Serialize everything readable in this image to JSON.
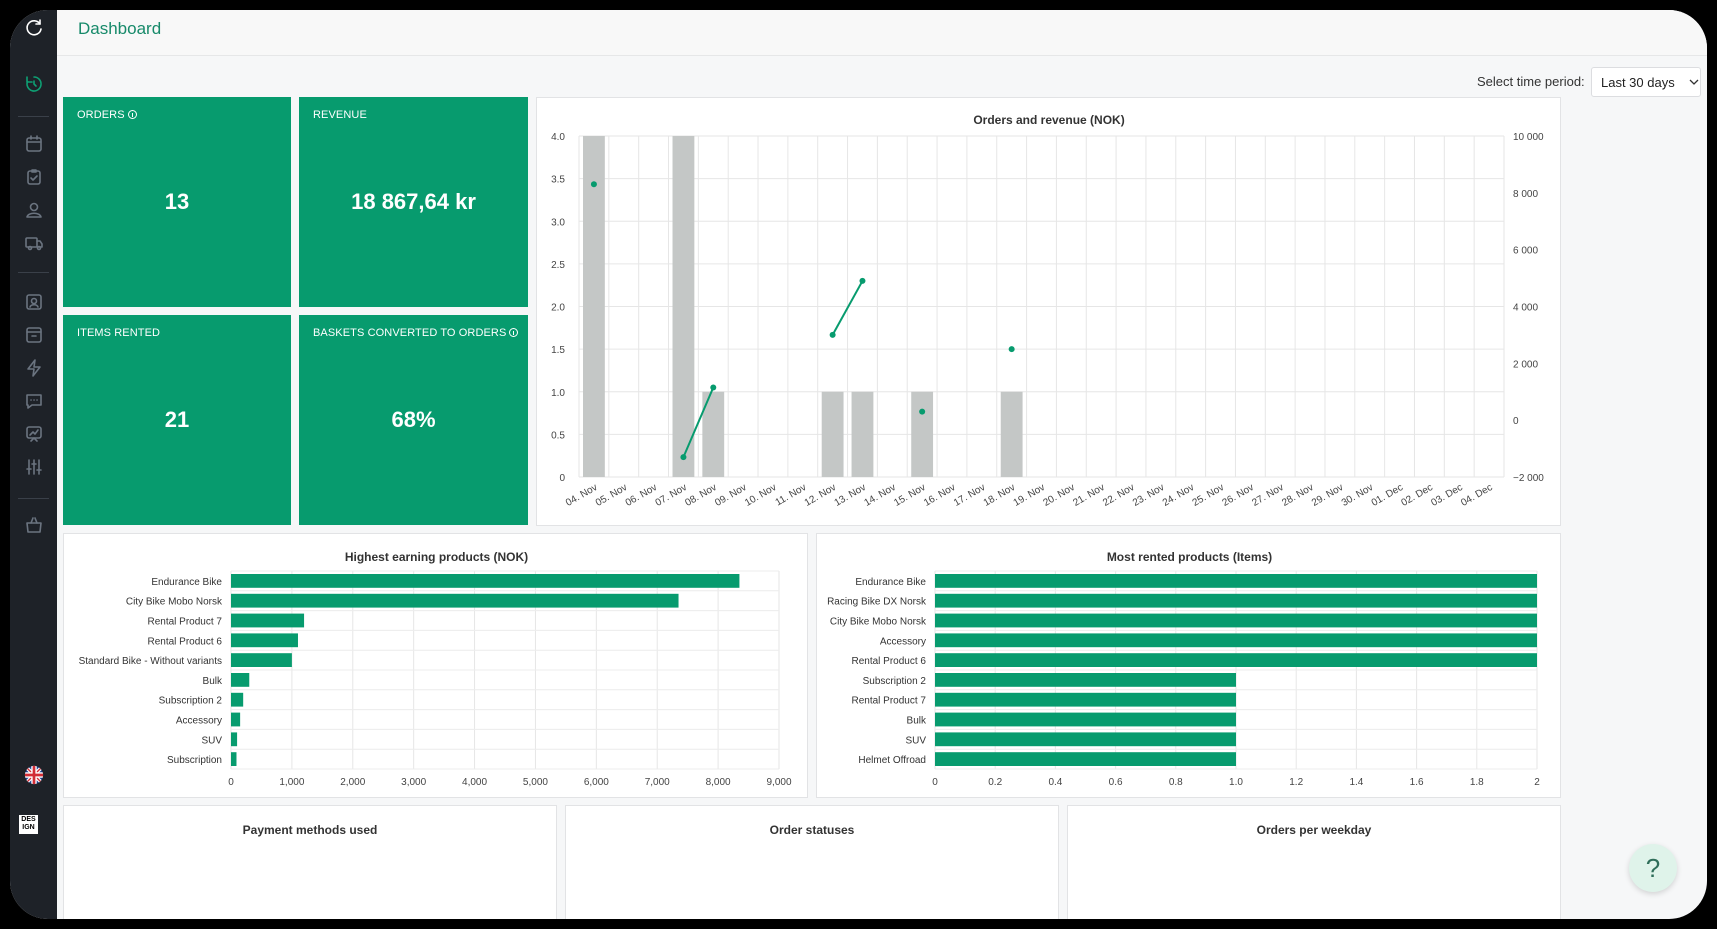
{
  "header": {
    "title": "Dashboard"
  },
  "filters": {
    "period_label": "Select time period:",
    "period_value": "Last 30 days"
  },
  "kpis": [
    {
      "label": "ORDERS",
      "value": "13",
      "info": true
    },
    {
      "label": "REVENUE",
      "value": "18 867,64 kr",
      "info": false
    },
    {
      "label": "ITEMS RENTED",
      "value": "21",
      "info": false
    },
    {
      "label": "BASKETS CONVERTED TO ORDERS",
      "value": "68%",
      "info": true
    }
  ],
  "sidebar": {
    "icons": [
      "refresh-logo-icon",
      "dashboard-icon",
      "calendar-icon",
      "clipboard-check-icon",
      "user-icon",
      "truck-icon",
      "contact-card-icon",
      "archive-icon",
      "lightning-icon",
      "chat-icon",
      "presentation-chart-icon",
      "sliders-icon",
      "shopping-basket-icon",
      "uk-flag-icon",
      "design-logo-icon"
    ],
    "logo_text": [
      "DES",
      "IGN"
    ]
  },
  "colors": {
    "accent": "#079b6e",
    "bar_gray": "#c4c7c6",
    "sidebar": "#1e2228"
  },
  "chart_data": [
    {
      "type": "bar",
      "title": "Orders and revenue (NOK)",
      "categories": [
        "04. Nov",
        "05. Nov",
        "06. Nov",
        "07. Nov",
        "08. Nov",
        "09. Nov",
        "10. Nov",
        "11. Nov",
        "12. Nov",
        "13. Nov",
        "14. Nov",
        "15. Nov",
        "16. Nov",
        "17. Nov",
        "18. Nov",
        "19. Nov",
        "20. Nov",
        "21. Nov",
        "22. Nov",
        "23. Nov",
        "24. Nov",
        "25. Nov",
        "26. Nov",
        "27. Nov",
        "28. Nov",
        "29. Nov",
        "30. Nov",
        "01. Dec",
        "02. Dec",
        "03. Dec",
        "04. Dec"
      ],
      "series": [
        {
          "kind": "bar",
          "axis": "left",
          "values": [
            4,
            0,
            0,
            4,
            1,
            0,
            0,
            0,
            1,
            1,
            0,
            1,
            0,
            0,
            1,
            0,
            0,
            0,
            0,
            0,
            0,
            0,
            0,
            0,
            0,
            0,
            0,
            0,
            0,
            0,
            0
          ]
        },
        {
          "kind": "line",
          "axis": "right",
          "values": [
            8300,
            null,
            null,
            -1300,
            1150,
            null,
            null,
            null,
            3000,
            4900,
            null,
            300,
            null,
            null,
            2500,
            null,
            null,
            null,
            null,
            null,
            null,
            null,
            null,
            null,
            null,
            null,
            null,
            null,
            null,
            null,
            null
          ]
        }
      ],
      "y_left": {
        "min": 0,
        "max": 4,
        "ticks": [
          "0",
          "0.5",
          "1.0",
          "1.5",
          "2.0",
          "2.5",
          "3.0",
          "3.5",
          "4.0"
        ]
      },
      "y_right": {
        "min": -2000,
        "max": 10000,
        "ticks": [
          "−2 000",
          "0",
          "2 000",
          "4 000",
          "6 000",
          "8 000",
          "10 000"
        ]
      },
      "grid": true
    },
    {
      "type": "bar",
      "orientation": "horizontal",
      "title": "Highest earning products (NOK)",
      "categories": [
        "Endurance Bike",
        "City Bike Mobo Norsk",
        "Rental Product 7",
        "Rental Product 6",
        "Standard Bike - Without variants",
        "Bulk",
        "Subscription 2",
        "Accessory",
        "SUV",
        "Subscription"
      ],
      "values": [
        8350,
        7350,
        1200,
        1100,
        1000,
        300,
        200,
        150,
        100,
        90
      ],
      "xlim": [
        0,
        9000
      ],
      "xticks": [
        "0",
        "1,000",
        "2,000",
        "3,000",
        "4,000",
        "5,000",
        "6,000",
        "7,000",
        "8,000",
        "9,000"
      ],
      "grid": true
    },
    {
      "type": "bar",
      "orientation": "horizontal",
      "title": "Most rented products (Items)",
      "categories": [
        "Endurance Bike",
        "Racing Bike DX Norsk",
        "City Bike Mobo Norsk",
        "Accessory",
        "Rental Product 6",
        "Subscription 2",
        "Rental Product 7",
        "Bulk",
        "SUV",
        "Helmet Offroad"
      ],
      "values": [
        2,
        2,
        2,
        2,
        2,
        1,
        1,
        1,
        1,
        1
      ],
      "xlim": [
        0,
        2
      ],
      "xticks": [
        "0",
        "0.2",
        "0.4",
        "0.6",
        "0.8",
        "1.0",
        "1.2",
        "1.4",
        "1.6",
        "1.8",
        "2"
      ],
      "grid": true
    }
  ],
  "bottom_panels": [
    {
      "title": "Payment methods used"
    },
    {
      "title": "Order statuses"
    },
    {
      "title": "Orders per weekday"
    }
  ],
  "help": {
    "label": "?"
  }
}
